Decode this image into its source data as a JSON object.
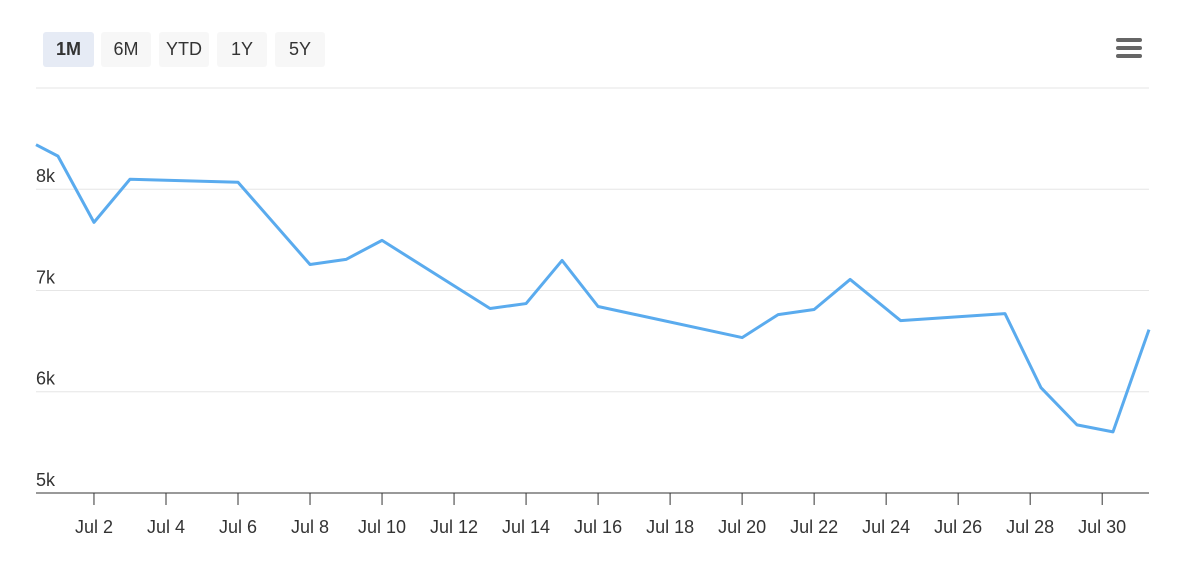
{
  "chart_data": {
    "type": "line",
    "range_buttons": [
      "1M",
      "6M",
      "YTD",
      "1Y",
      "5Y"
    ],
    "selected_range": 0,
    "x": [
      0.39,
      1,
      2,
      3,
      6,
      8,
      9,
      10,
      13,
      14,
      15,
      16,
      20,
      21,
      22,
      23,
      24.4,
      27.3,
      28.3,
      29.3,
      30.3,
      31.3
    ],
    "series": [
      {
        "color": "#5aabee",
        "values": [
          8440,
          8327,
          7673,
          8099,
          8069,
          7257,
          7307,
          7495,
          6822,
          6871,
          7297,
          6842,
          6535,
          6762,
          6812,
          7109,
          6703,
          6772,
          6040,
          5673,
          5604,
          6614
        ]
      }
    ],
    "xlim": [
      0.39,
      31.3
    ],
    "xticks": [
      {
        "value": 2,
        "label": "Jul 2"
      },
      {
        "value": 4,
        "label": "Jul 4"
      },
      {
        "value": 6,
        "label": "Jul 6"
      },
      {
        "value": 8,
        "label": "Jul 8"
      },
      {
        "value": 10,
        "label": "Jul 10"
      },
      {
        "value": 12,
        "label": "Jul 12"
      },
      {
        "value": 14,
        "label": "Jul 14"
      },
      {
        "value": 16,
        "label": "Jul 16"
      },
      {
        "value": 18,
        "label": "Jul 18"
      },
      {
        "value": 20,
        "label": "Jul 20"
      },
      {
        "value": 22,
        "label": "Jul 22"
      },
      {
        "value": 24,
        "label": "Jul 24"
      },
      {
        "value": 26,
        "label": "Jul 26"
      },
      {
        "value": 28,
        "label": "Jul 28"
      },
      {
        "value": 30,
        "label": "Jul 30"
      }
    ],
    "ylim": [
      5000,
      9000
    ],
    "yticks": [
      {
        "value": 5000,
        "label": "5k"
      },
      {
        "value": 6000,
        "label": "6k"
      },
      {
        "value": 7000,
        "label": "7k"
      },
      {
        "value": 8000,
        "label": "8k"
      }
    ],
    "grid": true
  }
}
